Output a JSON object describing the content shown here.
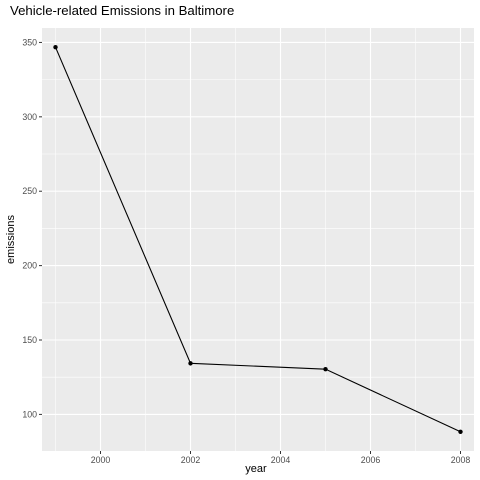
{
  "chart_data": {
    "type": "line",
    "title": "Vehicle-related Emissions in Baltimore",
    "xlabel": "year",
    "ylabel": "emissions",
    "x": [
      1999,
      2002,
      2005,
      2008
    ],
    "values": [
      346.8,
      134.3,
      130.4,
      88.3
    ],
    "xticks": [
      2000,
      2002,
      2004,
      2006,
      2008
    ],
    "yticks": [
      100,
      150,
      200,
      250,
      300,
      350
    ],
    "xlim": [
      1998.7,
      2008.3
    ],
    "ylim": [
      75.4,
      359.7
    ],
    "grid": true,
    "legend": "none",
    "colors": {
      "panel": "#ebebeb",
      "grid": "#ffffff",
      "line": "#000000",
      "point": "#000000",
      "tick_text": "#4d4d4d",
      "tick_mark": "#333333"
    }
  }
}
